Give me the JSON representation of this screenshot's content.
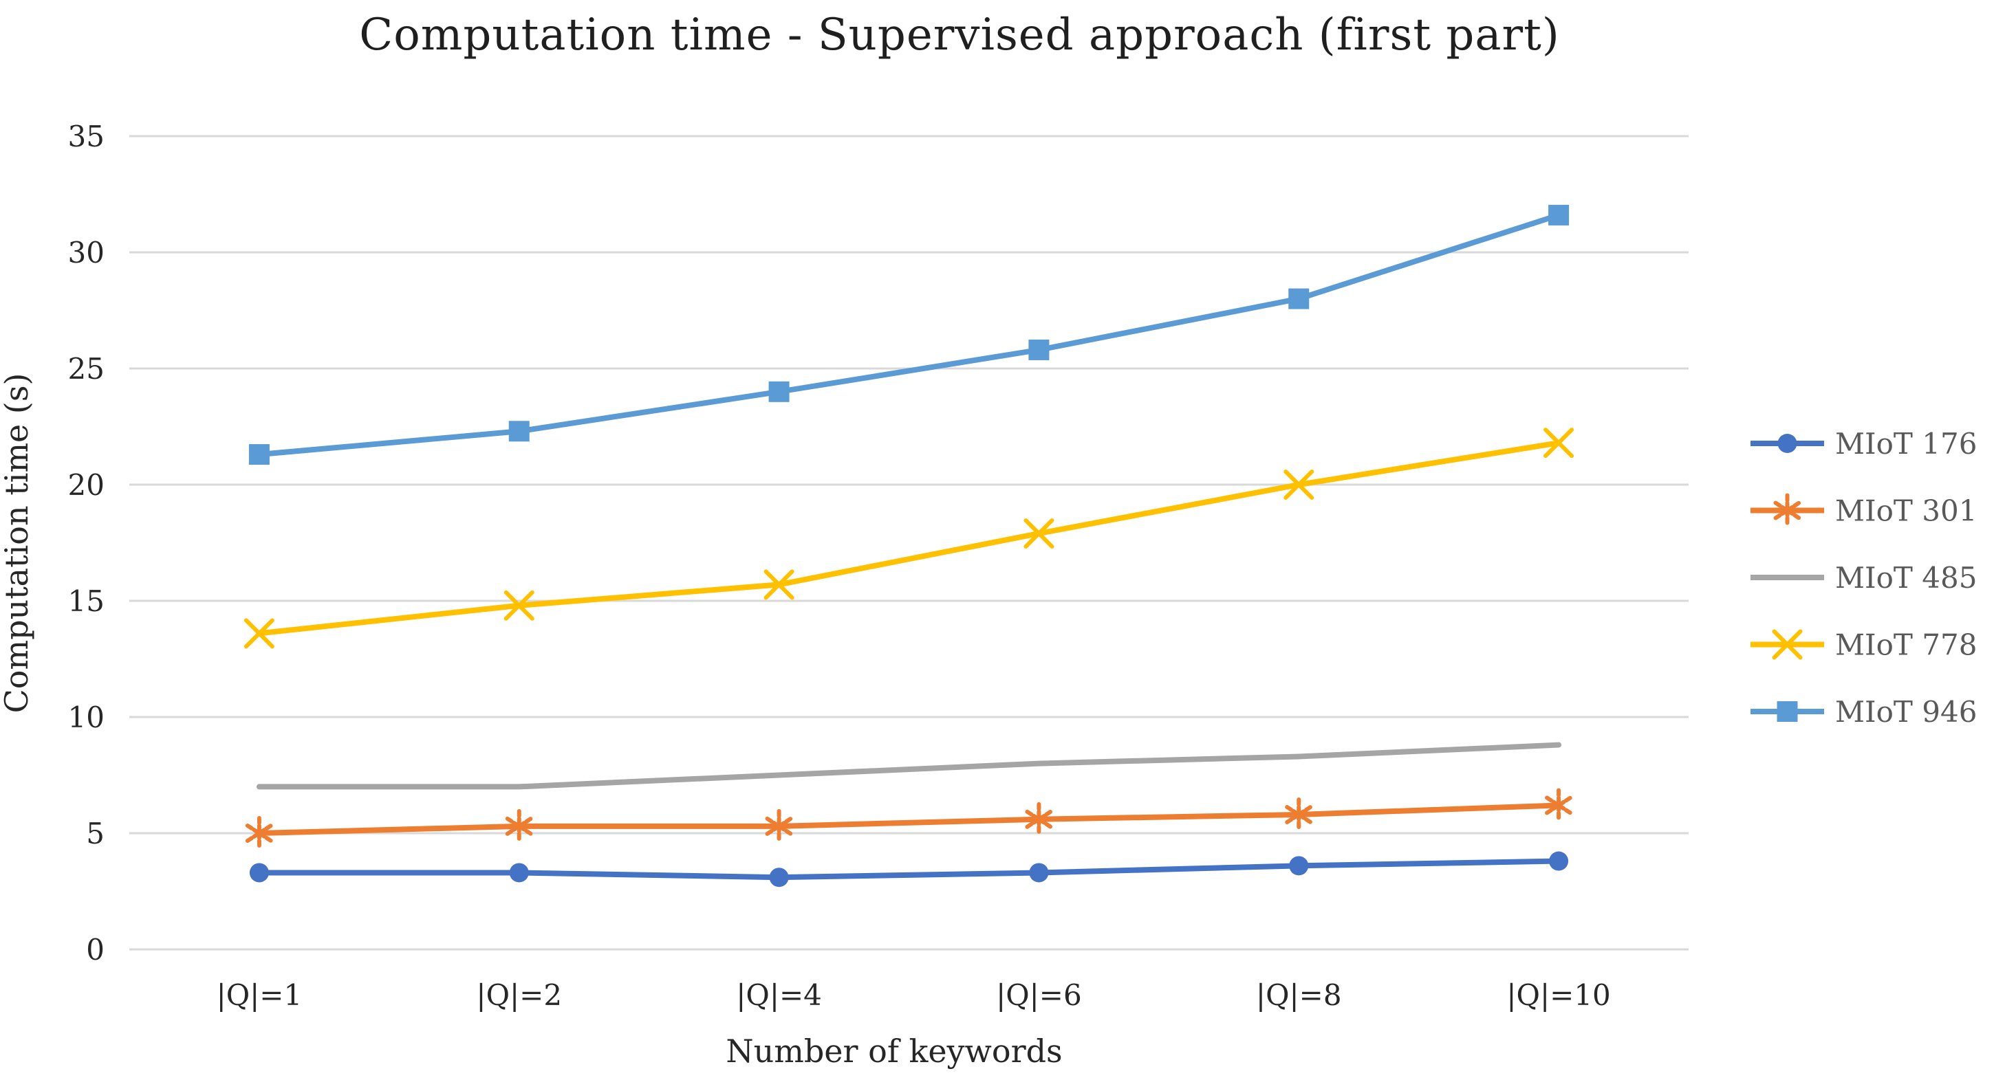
{
  "chart": {
    "title": "Computation time - Supervised approach (first part)",
    "x_axis_title": "Number of keywords",
    "y_axis_title": "Computation time (s)"
  },
  "chart_data": {
    "type": "line",
    "title": "Computation time - Supervised approach (first part)",
    "xlabel": "Number of keywords",
    "ylabel": "Computation time (s)",
    "categories": [
      "|Q|=1",
      "|Q|=2",
      "|Q|=4",
      "|Q|=6",
      "|Q|=8",
      "|Q|=10"
    ],
    "series": [
      {
        "name": "MIoT 176",
        "color": "#4472C4",
        "marker": "circle",
        "values": [
          3.3,
          3.3,
          3.1,
          3.3,
          3.6,
          3.8
        ]
      },
      {
        "name": "MIoT 301",
        "color": "#ED7D31",
        "marker": "asterisk",
        "values": [
          5.0,
          5.3,
          5.3,
          5.6,
          5.8,
          6.2
        ]
      },
      {
        "name": "MIoT 485",
        "color": "#A5A5A5",
        "marker": "none",
        "values": [
          7.0,
          7.0,
          7.5,
          8.0,
          8.3,
          8.8
        ]
      },
      {
        "name": "MIoT 778",
        "color": "#FFC000",
        "marker": "x",
        "values": [
          13.6,
          14.8,
          15.7,
          17.9,
          20.0,
          21.8
        ]
      },
      {
        "name": "MIoT 946",
        "color": "#5B9BD5",
        "marker": "square",
        "values": [
          21.3,
          22.3,
          24.0,
          25.8,
          28.0,
          31.6
        ]
      }
    ],
    "y_ticks": [
      0,
      5,
      10,
      15,
      20,
      25,
      30,
      35
    ],
    "ylim": [
      0,
      35
    ],
    "grid": true,
    "legend_position": "right",
    "gridline_color": "#D9D9D9",
    "background": "#FFFFFF"
  }
}
